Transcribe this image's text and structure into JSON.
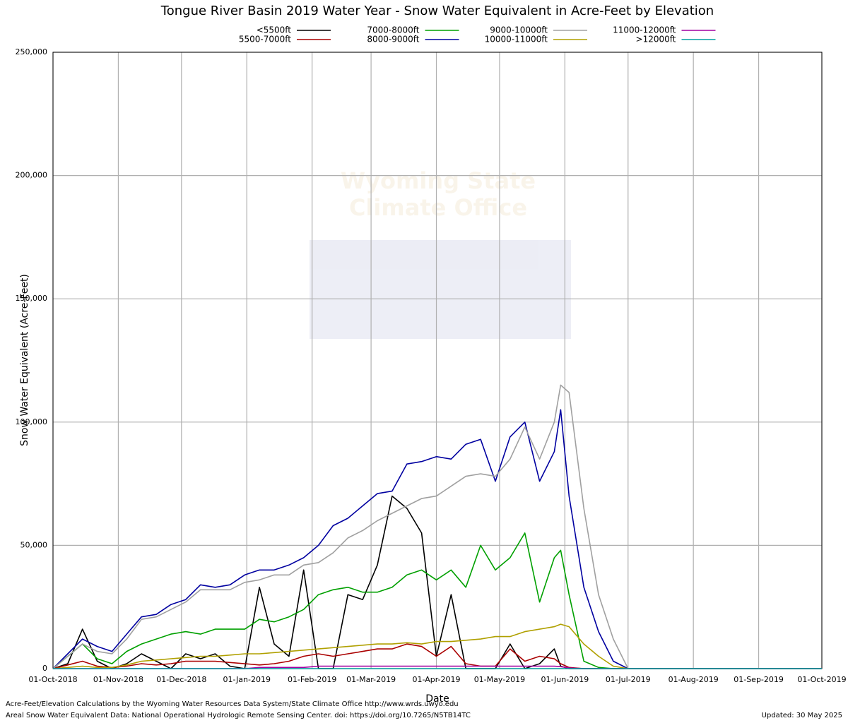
{
  "chart_data": {
    "type": "line",
    "title": "Tongue River Basin 2019 Water Year - Snow Water Equivalent in Acre-Feet by Elevation",
    "x_label": "Date",
    "y_label": "Snow Water Equivalent (Acre-Feet)",
    "watermark": [
      "Wyoming State",
      "Climate Office"
    ],
    "footer_left": [
      "Acre-Feet/Elevation Calculations by the Wyoming Water Resources Data System/State Climate Office http://www.wrds.uwyo.edu",
      "Areal Snow Water Equivalent Data: National Operational Hydrologic Remote Sensing Center. doi: https://doi.org/10.7265/N5TB14TC"
    ],
    "footer_right": "Updated: 30 May 2025",
    "grid": true,
    "legend_position": "top",
    "x": [
      "2018-10-01",
      "2018-10-08",
      "2018-10-15",
      "2018-10-22",
      "2018-10-29",
      "2018-11-05",
      "2018-11-12",
      "2018-11-19",
      "2018-11-26",
      "2018-12-03",
      "2018-12-10",
      "2018-12-17",
      "2018-12-24",
      "2018-12-31",
      "2019-01-07",
      "2019-01-14",
      "2019-01-21",
      "2019-01-28",
      "2019-02-04",
      "2019-02-11",
      "2019-02-18",
      "2019-02-25",
      "2019-03-04",
      "2019-03-11",
      "2019-03-18",
      "2019-03-25",
      "2019-04-01",
      "2019-04-08",
      "2019-04-15",
      "2019-04-22",
      "2019-04-29",
      "2019-05-06",
      "2019-05-13",
      "2019-05-20",
      "2019-05-27",
      "2019-05-30",
      "2019-06-03",
      "2019-06-10",
      "2019-06-17",
      "2019-06-24",
      "2019-07-01",
      "2019-08-01",
      "2019-09-01",
      "2019-10-01"
    ],
    "xlim": [
      "2018-10-01",
      "2019-10-01"
    ],
    "xticks": [
      {
        "value": "2018-10-01",
        "label": "01-Oct-2018"
      },
      {
        "value": "2018-11-01",
        "label": "01-Nov-2018"
      },
      {
        "value": "2018-12-01",
        "label": "01-Dec-2018"
      },
      {
        "value": "2019-01-01",
        "label": "01-Jan-2019"
      },
      {
        "value": "2019-02-01",
        "label": "01-Feb-2019"
      },
      {
        "value": "2019-03-01",
        "label": "01-Mar-2019"
      },
      {
        "value": "2019-04-01",
        "label": "01-Apr-2019"
      },
      {
        "value": "2019-05-01",
        "label": "01-May-2019"
      },
      {
        "value": "2019-06-01",
        "label": "01-Jun-2019"
      },
      {
        "value": "2019-07-01",
        "label": "01-Jul-2019"
      },
      {
        "value": "2019-08-01",
        "label": "01-Aug-2019"
      },
      {
        "value": "2019-09-01",
        "label": "01-Sep-2019"
      },
      {
        "value": "2019-10-01",
        "label": "01-Oct-2019"
      }
    ],
    "ylim": [
      0,
      250000
    ],
    "yticks": [
      0,
      {
        "value": 50000,
        "label": "50,000"
      },
      {
        "value": 100000,
        "label": "100,000"
      },
      {
        "value": 150000,
        "label": "150,000"
      },
      {
        "value": 200000,
        "label": "200,000"
      },
      {
        "value": 250000,
        "label": "250,000"
      }
    ],
    "series": [
      {
        "name": "<5500ft",
        "color": "#000000",
        "values": [
          0,
          2000,
          16000,
          3000,
          0,
          2000,
          6000,
          3000,
          0,
          6000,
          4000,
          6000,
          1000,
          0,
          33000,
          10000,
          5000,
          40000,
          0,
          0,
          30000,
          28000,
          42000,
          70000,
          65000,
          55000,
          5000,
          30000,
          0,
          0,
          0,
          10000,
          0,
          2000,
          8000,
          1000,
          0,
          0,
          0,
          0,
          0,
          0,
          0,
          0
        ]
      },
      {
        "name": "5500-7000ft",
        "color": "#aa0000",
        "values": [
          0,
          1500,
          3000,
          1000,
          500,
          1000,
          2000,
          1500,
          2000,
          3000,
          3000,
          3000,
          2500,
          2000,
          1500,
          2000,
          3000,
          5000,
          6000,
          5000,
          6000,
          7000,
          8000,
          8000,
          10000,
          9000,
          5000,
          9000,
          2000,
          1000,
          1000,
          8000,
          3000,
          5000,
          4000,
          2000,
          500,
          0,
          0,
          0,
          0,
          0,
          0,
          0
        ]
      },
      {
        "name": "7000-8000ft",
        "color": "#00a000",
        "values": [
          0,
          5000,
          10000,
          4000,
          2000,
          7000,
          10000,
          12000,
          14000,
          15000,
          14000,
          16000,
          16000,
          16000,
          20000,
          19000,
          21000,
          24000,
          30000,
          32000,
          33000,
          31000,
          31000,
          33000,
          38000,
          40000,
          36000,
          40000,
          33000,
          50000,
          40000,
          45000,
          55000,
          27000,
          45000,
          48000,
          30000,
          3000,
          500,
          0,
          0,
          0,
          0,
          0
        ]
      },
      {
        "name": "8000-9000ft",
        "color": "#0000a0",
        "values": [
          0,
          6000,
          12000,
          9000,
          7000,
          14000,
          21000,
          22000,
          26000,
          28000,
          34000,
          33000,
          34000,
          38000,
          40000,
          40000,
          42000,
          45000,
          50000,
          58000,
          61000,
          66000,
          71000,
          72000,
          83000,
          84000,
          86000,
          85000,
          91000,
          93000,
          76000,
          94000,
          100000,
          76000,
          88000,
          105000,
          70000,
          33000,
          15000,
          3000,
          0,
          0,
          0,
          0
        ]
      },
      {
        "name": "9000-10000ft",
        "color": "#a0a0a0",
        "values": [
          0,
          5000,
          10000,
          7000,
          6000,
          12000,
          20000,
          21000,
          24000,
          27000,
          32000,
          32000,
          32000,
          35000,
          36000,
          38000,
          38000,
          42000,
          43000,
          47000,
          53000,
          56000,
          60000,
          63000,
          66000,
          69000,
          70000,
          74000,
          78000,
          79000,
          78000,
          85000,
          98000,
          85000,
          100000,
          115000,
          112000,
          65000,
          30000,
          12000,
          0,
          0,
          0,
          0
        ]
      },
      {
        "name": "10000-11000ft",
        "color": "#b0a000",
        "values": [
          0,
          500,
          1000,
          500,
          500,
          1500,
          3000,
          3500,
          4000,
          4500,
          5000,
          5000,
          5500,
          6000,
          6000,
          6500,
          7000,
          7500,
          8000,
          8500,
          9000,
          9500,
          10000,
          10000,
          10500,
          10000,
          11000,
          11000,
          11500,
          12000,
          13000,
          13000,
          15000,
          16000,
          17000,
          18000,
          17000,
          10000,
          5000,
          1000,
          0,
          0,
          0,
          0
        ]
      },
      {
        "name": "11000-12000ft",
        "color": "#a000a0",
        "values": [
          0,
          0,
          0,
          0,
          0,
          0,
          0,
          0,
          0,
          0,
          0,
          0,
          0,
          0,
          500,
          500,
          500,
          500,
          1000,
          1000,
          1000,
          1000,
          1000,
          1000,
          1000,
          1000,
          1000,
          1000,
          1000,
          1000,
          1000,
          1000,
          1000,
          1000,
          1000,
          800,
          300,
          0,
          0,
          0,
          0,
          0,
          0,
          0
        ]
      },
      {
        "name": ">12000ft",
        "color": "#00a0a0",
        "values": [
          0,
          0,
          0,
          0,
          0,
          0,
          0,
          0,
          0,
          0,
          0,
          0,
          0,
          0,
          0,
          0,
          0,
          0,
          0,
          0,
          0,
          0,
          0,
          0,
          0,
          0,
          0,
          0,
          0,
          0,
          0,
          0,
          0,
          0,
          0,
          0,
          0,
          0,
          0,
          0,
          0,
          0,
          0,
          0
        ]
      }
    ]
  }
}
